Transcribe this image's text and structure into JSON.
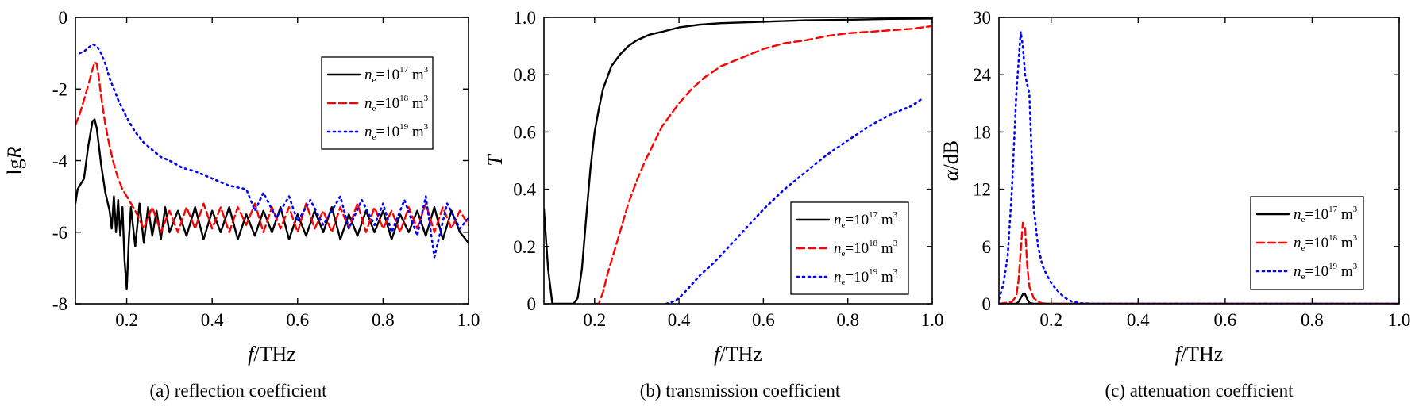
{
  "panels": [
    {
      "id": "a",
      "caption": "(a) reflection coefficient",
      "xlabel_italic": "f",
      "xlabel_rest": "/THz",
      "ylabel_prefix": "lg",
      "ylabel_italic": "R",
      "ylabel_rest": "",
      "legend": [
        {
          "n": "n",
          "sub": "e",
          "eq": "=10",
          "sup": "17",
          "unit": " m",
          "usup": "3"
        },
        {
          "n": "n",
          "sub": "e",
          "eq": "=10",
          "sup": "18",
          "unit": " m",
          "usup": "3"
        },
        {
          "n": "n",
          "sub": "e",
          "eq": "=10",
          "sup": "19",
          "unit": " m",
          "usup": "3"
        }
      ]
    },
    {
      "id": "b",
      "caption": "(b) transmission coefficient",
      "xlabel_italic": "f",
      "xlabel_rest": "/THz",
      "ylabel_prefix": "",
      "ylabel_italic": "T",
      "ylabel_rest": "",
      "legend": [
        {
          "n": "n",
          "sub": "e",
          "eq": "=10",
          "sup": "17",
          "unit": " m",
          "usup": "3"
        },
        {
          "n": "n",
          "sub": "e",
          "eq": "=10",
          "sup": "18",
          "unit": " m",
          "usup": "3"
        },
        {
          "n": "n",
          "sub": "e",
          "eq": "=10",
          "sup": "19",
          "unit": " m",
          "usup": "3"
        }
      ]
    },
    {
      "id": "c",
      "caption": "(c) attenuation coefficient",
      "xlabel_italic": "f",
      "xlabel_rest": "/THz",
      "ylabel_prefix": "",
      "ylabel_italic": "α",
      "ylabel_rest": "/dB",
      "legend": [
        {
          "n": "n",
          "sub": "e",
          "eq": "=10",
          "sup": "17",
          "unit": " m",
          "usup": "3"
        },
        {
          "n": "n",
          "sub": "e",
          "eq": "=10",
          "sup": "18",
          "unit": " m",
          "usup": "3"
        },
        {
          "n": "n",
          "sub": "e",
          "eq": "=10",
          "sup": "19",
          "unit": " m",
          "usup": "3"
        }
      ]
    }
  ],
  "series_style": [
    {
      "color": "#000000",
      "dash": "solid"
    },
    {
      "color": "#ff0000",
      "dash": "dashed"
    },
    {
      "color": "#0000ff",
      "dash": "dotted"
    }
  ],
  "chart_data": [
    {
      "type": "line",
      "title": "(a) reflection coefficient",
      "xlabel": "f/THz",
      "ylabel": "lgR",
      "xlim": [
        0.08,
        1.0
      ],
      "ylim": [
        -8,
        0
      ],
      "xticks": [
        0.2,
        0.4,
        0.6,
        0.8,
        1.0
      ],
      "xtick_labels": [
        "0.2",
        "0.4",
        "0.6",
        "0.8",
        "1.0"
      ],
      "yticks": [
        -8,
        -6,
        -4,
        -2,
        0
      ],
      "ytick_labels": [
        "-8",
        "-6",
        "-4",
        "-2",
        "0"
      ],
      "grid": false,
      "legend_position": "top-right",
      "series": [
        {
          "name": "ne=10^17 m3",
          "x": [
            0.08,
            0.085,
            0.09,
            0.1,
            0.11,
            0.12,
            0.125,
            0.13,
            0.135,
            0.14,
            0.15,
            0.16,
            0.165,
            0.17,
            0.175,
            0.18,
            0.185,
            0.19,
            0.195,
            0.2,
            0.205,
            0.21,
            0.22,
            0.23,
            0.24,
            0.25,
            0.26,
            0.27,
            0.28,
            0.29,
            0.3,
            0.32,
            0.34,
            0.36,
            0.38,
            0.4,
            0.42,
            0.44,
            0.46,
            0.48,
            0.5,
            0.52,
            0.54,
            0.56,
            0.58,
            0.6,
            0.62,
            0.64,
            0.66,
            0.68,
            0.7,
            0.72,
            0.74,
            0.76,
            0.78,
            0.8,
            0.82,
            0.84,
            0.86,
            0.88,
            0.9,
            0.92,
            0.94,
            0.96,
            0.98,
            1.0
          ],
          "y": [
            -5.2,
            -4.8,
            -4.7,
            -4.5,
            -3.6,
            -2.9,
            -2.85,
            -3.1,
            -3.6,
            -4.1,
            -4.9,
            -5.4,
            -5.9,
            -5.0,
            -6.0,
            -5.1,
            -6.1,
            -5.3,
            -6.8,
            -7.6,
            -6.2,
            -5.3,
            -6.4,
            -5.2,
            -6.3,
            -5.3,
            -6.1,
            -5.4,
            -6.2,
            -5.3,
            -6.0,
            -5.4,
            -6.1,
            -5.3,
            -6.2,
            -5.4,
            -6.0,
            -5.3,
            -6.2,
            -5.5,
            -6.1,
            -5.4,
            -6.0,
            -5.3,
            -6.2,
            -5.5,
            -6.1,
            -5.4,
            -6.0,
            -5.3,
            -6.2,
            -5.5,
            -6.1,
            -5.4,
            -6.0,
            -5.4,
            -6.2,
            -5.5,
            -6.0,
            -5.4,
            -6.1,
            -5.3,
            -6.2,
            -5.4,
            -6.0,
            -6.3
          ]
        },
        {
          "name": "ne=10^18 m3",
          "x": [
            0.08,
            0.09,
            0.1,
            0.11,
            0.12,
            0.125,
            0.13,
            0.135,
            0.14,
            0.15,
            0.16,
            0.17,
            0.18,
            0.19,
            0.2,
            0.22,
            0.24,
            0.26,
            0.28,
            0.3,
            0.32,
            0.34,
            0.36,
            0.38,
            0.4,
            0.42,
            0.44,
            0.46,
            0.48,
            0.5,
            0.52,
            0.54,
            0.56,
            0.58,
            0.6,
            0.62,
            0.64,
            0.66,
            0.68,
            0.7,
            0.72,
            0.74,
            0.76,
            0.78,
            0.8,
            0.82,
            0.84,
            0.86,
            0.88,
            0.9,
            0.92,
            0.94,
            0.96,
            0.98,
            1.0
          ],
          "y": [
            -3.0,
            -2.7,
            -2.3,
            -1.9,
            -1.45,
            -1.25,
            -1.3,
            -1.7,
            -2.2,
            -3.0,
            -3.6,
            -4.1,
            -4.5,
            -4.8,
            -5.0,
            -5.4,
            -5.9,
            -5.3,
            -6.0,
            -5.4,
            -6.0,
            -5.3,
            -5.9,
            -5.2,
            -5.9,
            -5.3,
            -6.0,
            -5.3,
            -5.8,
            -5.2,
            -6.0,
            -5.3,
            -5.9,
            -5.3,
            -6.0,
            -5.2,
            -5.9,
            -5.4,
            -6.0,
            -5.3,
            -5.9,
            -5.2,
            -6.0,
            -5.3,
            -5.9,
            -5.4,
            -6.0,
            -5.3,
            -5.9,
            -5.2,
            -6.0,
            -5.3,
            -5.9,
            -5.4,
            -5.8
          ]
        },
        {
          "name": "ne=10^19 m3",
          "x": [
            0.09,
            0.1,
            0.11,
            0.12,
            0.13,
            0.14,
            0.15,
            0.16,
            0.18,
            0.2,
            0.22,
            0.24,
            0.26,
            0.28,
            0.3,
            0.33,
            0.36,
            0.4,
            0.44,
            0.48,
            0.5,
            0.52,
            0.55,
            0.58,
            0.6,
            0.63,
            0.66,
            0.7,
            0.72,
            0.75,
            0.78,
            0.8,
            0.82,
            0.85,
            0.88,
            0.9,
            0.92,
            0.95,
            0.98,
            1.0
          ],
          "y": [
            -1.0,
            -0.95,
            -0.85,
            -0.75,
            -0.8,
            -1.0,
            -1.3,
            -1.7,
            -2.3,
            -2.8,
            -3.2,
            -3.5,
            -3.7,
            -3.9,
            -4.0,
            -4.2,
            -4.3,
            -4.5,
            -4.7,
            -4.8,
            -5.4,
            -4.9,
            -5.6,
            -5.0,
            -5.7,
            -5.1,
            -5.8,
            -5.0,
            -5.9,
            -5.1,
            -5.8,
            -5.2,
            -6.0,
            -5.1,
            -6.1,
            -5.0,
            -6.7,
            -5.2,
            -5.9,
            -5.6
          ]
        }
      ]
    },
    {
      "type": "line",
      "title": "(b) transmission coefficient",
      "xlabel": "f/THz",
      "ylabel": "T",
      "xlim": [
        0.08,
        1.0
      ],
      "ylim": [
        0,
        1.0
      ],
      "xticks": [
        0.2,
        0.4,
        0.6,
        0.8,
        1.0
      ],
      "xtick_labels": [
        "0.2",
        "0.4",
        "0.6",
        "0.8",
        "1.0"
      ],
      "yticks": [
        0,
        0.2,
        0.4,
        0.6,
        0.8,
        1.0
      ],
      "ytick_labels": [
        "0",
        "0.2",
        "0.4",
        "0.6",
        "0.8",
        "1.0"
      ],
      "grid": false,
      "legend_position": "bottom-right",
      "series": [
        {
          "name": "ne=10^17 m3",
          "x": [
            0.08,
            0.09,
            0.1,
            0.11,
            0.12,
            0.13,
            0.14,
            0.15,
            0.16,
            0.17,
            0.18,
            0.19,
            0.2,
            0.21,
            0.22,
            0.24,
            0.26,
            0.28,
            0.3,
            0.33,
            0.36,
            0.4,
            0.45,
            0.5,
            0.6,
            0.7,
            0.8,
            0.9,
            1.0
          ],
          "y": [
            0.33,
            0.12,
            0.0,
            0.0,
            0.0,
            0.0,
            0.0,
            0.0,
            0.02,
            0.12,
            0.3,
            0.47,
            0.6,
            0.68,
            0.75,
            0.83,
            0.87,
            0.9,
            0.92,
            0.94,
            0.95,
            0.965,
            0.975,
            0.98,
            0.985,
            0.99,
            0.992,
            0.995,
            0.996
          ]
        },
        {
          "name": "ne=10^18 m3",
          "x": [
            0.2,
            0.21,
            0.22,
            0.23,
            0.24,
            0.25,
            0.26,
            0.28,
            0.3,
            0.32,
            0.34,
            0.36,
            0.38,
            0.4,
            0.43,
            0.46,
            0.5,
            0.55,
            0.6,
            0.65,
            0.7,
            0.75,
            0.8,
            0.85,
            0.9,
            0.95,
            1.0
          ],
          "y": [
            0.0,
            0.0,
            0.04,
            0.1,
            0.15,
            0.2,
            0.25,
            0.35,
            0.43,
            0.5,
            0.56,
            0.62,
            0.66,
            0.7,
            0.75,
            0.79,
            0.83,
            0.86,
            0.89,
            0.91,
            0.92,
            0.935,
            0.945,
            0.95,
            0.955,
            0.96,
            0.97
          ]
        },
        {
          "name": "ne=10^19 m3",
          "x": [
            0.37,
            0.38,
            0.39,
            0.4,
            0.42,
            0.45,
            0.48,
            0.5,
            0.55,
            0.6,
            0.65,
            0.7,
            0.75,
            0.8,
            0.85,
            0.9,
            0.95,
            0.98
          ],
          "y": [
            0.0,
            0.005,
            0.01,
            0.02,
            0.05,
            0.1,
            0.14,
            0.17,
            0.25,
            0.33,
            0.4,
            0.46,
            0.52,
            0.57,
            0.62,
            0.66,
            0.69,
            0.72
          ]
        }
      ]
    },
    {
      "type": "line",
      "title": "(c) attenuation coefficient",
      "xlabel": "f/THz",
      "ylabel": "α/dB",
      "xlim": [
        0.08,
        1.0
      ],
      "ylim": [
        0,
        30
      ],
      "xticks": [
        0.2,
        0.4,
        0.6,
        0.8,
        1.0
      ],
      "xtick_labels": [
        "0.2",
        "0.4",
        "0.6",
        "0.8",
        "1.0"
      ],
      "yticks": [
        0,
        6,
        12,
        18,
        24,
        30
      ],
      "ytick_labels": [
        "0",
        "6",
        "12",
        "18",
        "24",
        "30"
      ],
      "grid": false,
      "legend_position": "center-right",
      "series": [
        {
          "name": "ne=10^17 m3",
          "x": [
            0.08,
            0.12,
            0.125,
            0.13,
            0.135,
            0.14,
            0.145,
            0.15,
            0.16,
            0.2,
            0.4,
            0.6,
            0.8,
            1.0
          ],
          "y": [
            0.0,
            0.0,
            0.2,
            0.6,
            1.0,
            1.0,
            0.5,
            0.1,
            0.0,
            0.0,
            0.0,
            0.0,
            0.0,
            0.0
          ]
        },
        {
          "name": "ne=10^18 m3",
          "x": [
            0.08,
            0.11,
            0.12,
            0.125,
            0.13,
            0.135,
            0.14,
            0.145,
            0.15,
            0.16,
            0.17,
            0.18,
            0.2,
            0.4,
            0.6,
            0.8,
            1.0
          ],
          "y": [
            0.0,
            0.2,
            0.8,
            2.5,
            5.5,
            8.5,
            8.0,
            4.0,
            1.8,
            0.6,
            0.2,
            0.05,
            0.0,
            0.0,
            0.0,
            0.0,
            0.0
          ]
        },
        {
          "name": "ne=10^19 m3",
          "x": [
            0.08,
            0.09,
            0.1,
            0.11,
            0.12,
            0.13,
            0.135,
            0.14,
            0.15,
            0.155,
            0.16,
            0.17,
            0.18,
            0.19,
            0.2,
            0.21,
            0.22,
            0.23,
            0.24,
            0.25,
            0.27,
            0.3,
            0.4,
            0.6,
            0.8,
            1.0
          ],
          "y": [
            0.5,
            2.0,
            5.0,
            12.0,
            22.0,
            28.5,
            27.0,
            24.0,
            22.0,
            16.0,
            10.0,
            6.0,
            4.0,
            3.0,
            2.2,
            1.6,
            1.1,
            0.7,
            0.4,
            0.2,
            0.05,
            0.0,
            0.0,
            0.0,
            0.0,
            0.0
          ]
        }
      ]
    }
  ]
}
